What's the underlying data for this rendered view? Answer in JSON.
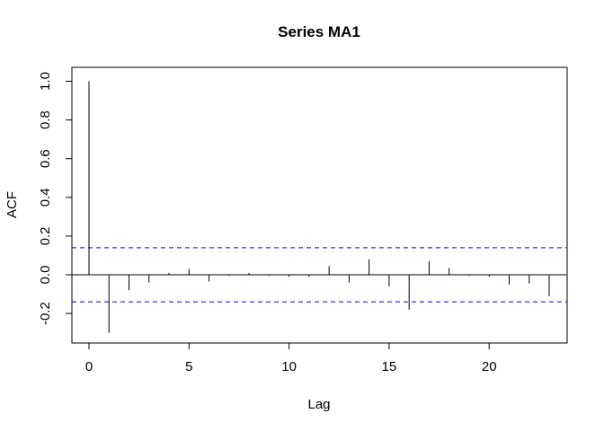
{
  "chart_data": {
    "type": "bar",
    "title": "Series  MA1",
    "xlabel": "Lag",
    "ylabel": "ACF",
    "xlim": [
      0,
      23
    ],
    "ylim": [
      -0.3,
      1.0
    ],
    "x_ticks": [
      0,
      5,
      10,
      15,
      20
    ],
    "y_ticks": [
      -0.2,
      0.0,
      0.2,
      0.4,
      0.6,
      0.8,
      1.0
    ],
    "x_tick_labels": [
      "0",
      "5",
      "10",
      "15",
      "20"
    ],
    "y_tick_labels": [
      "-0.2",
      "0.0",
      "0.2",
      "0.4",
      "0.6",
      "0.8",
      "1.0"
    ],
    "lags": [
      0,
      1,
      2,
      3,
      4,
      5,
      6,
      7,
      8,
      9,
      10,
      11,
      12,
      13,
      14,
      15,
      16,
      17,
      18,
      19,
      20,
      21,
      22,
      23
    ],
    "acf": [
      1.0,
      -0.3,
      -0.08,
      -0.04,
      0.01,
      0.03,
      -0.035,
      -0.005,
      0.01,
      -0.005,
      -0.01,
      -0.01,
      0.045,
      -0.04,
      0.08,
      -0.06,
      -0.18,
      0.07,
      0.035,
      -0.005,
      -0.01,
      -0.05,
      -0.045,
      -0.11
    ],
    "confidence_bound": 0.14,
    "confidence_color": "#0000ff",
    "grid": false
  }
}
